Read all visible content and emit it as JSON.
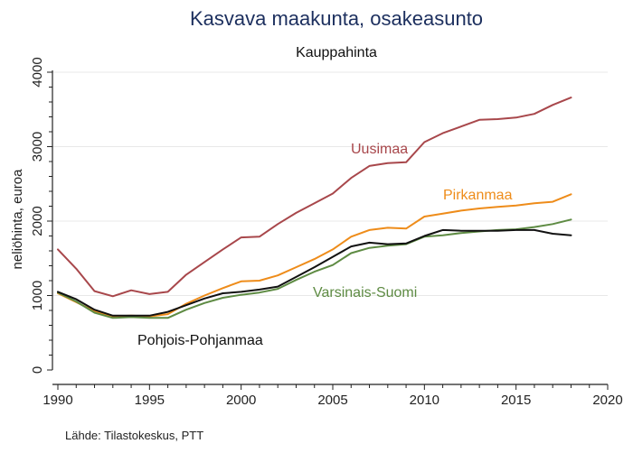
{
  "chart_data": {
    "type": "line",
    "title": "Kasvava maakunta, osakeasunto",
    "subtitle": "Kauppahinta",
    "ylabel": "neliöhinta, euroa",
    "xlabel": "",
    "xlim": [
      1990,
      2020
    ],
    "ylim": [
      0,
      4000
    ],
    "x_ticks": [
      1990,
      1995,
      2000,
      2005,
      2010,
      2015,
      2020
    ],
    "y_ticks": [
      0,
      1000,
      2000,
      3000,
      4000
    ],
    "grid": "horizontal",
    "x": [
      1990,
      1991,
      1992,
      1993,
      1994,
      1995,
      1996,
      1997,
      1998,
      1999,
      2000,
      2001,
      2002,
      2003,
      2004,
      2005,
      2006,
      2007,
      2008,
      2009,
      2010,
      2011,
      2012,
      2013,
      2014,
      2015,
      2016,
      2017,
      2018
    ],
    "series": [
      {
        "name": "Uusimaa",
        "color": "#a8474b",
        "values": [
          1620,
          1360,
          1060,
          990,
          1070,
          1020,
          1050,
          1280,
          1450,
          1620,
          1780,
          1790,
          1960,
          2110,
          2240,
          2370,
          2580,
          2740,
          2780,
          2790,
          3060,
          3180,
          3270,
          3360,
          3370,
          3390,
          3440,
          3560,
          3660
        ]
      },
      {
        "name": "Pirkanmaa",
        "color": "#ee8c1a",
        "values": [
          1030,
          910,
          790,
          720,
          730,
          720,
          750,
          890,
          1000,
          1100,
          1190,
          1200,
          1270,
          1380,
          1490,
          1620,
          1790,
          1880,
          1910,
          1900,
          2060,
          2100,
          2140,
          2170,
          2190,
          2210,
          2240,
          2260,
          2360
        ]
      },
      {
        "name": "Varsinais-Suomi",
        "color": "#5e8b43",
        "values": [
          1040,
          920,
          770,
          700,
          710,
          700,
          700,
          810,
          900,
          970,
          1010,
          1040,
          1090,
          1210,
          1320,
          1410,
          1570,
          1640,
          1670,
          1690,
          1790,
          1810,
          1840,
          1860,
          1880,
          1890,
          1920,
          1960,
          2020
        ]
      },
      {
        "name": "Pohjois-Pohjanmaa",
        "color": "#111111",
        "values": [
          1050,
          950,
          810,
          730,
          730,
          730,
          780,
          870,
          960,
          1030,
          1050,
          1080,
          1120,
          1250,
          1380,
          1520,
          1660,
          1710,
          1690,
          1700,
          1800,
          1880,
          1870,
          1870,
          1870,
          1880,
          1880,
          1830,
          1810
        ]
      }
    ],
    "source": "Lähde: Tilastokeskus, PTT"
  }
}
